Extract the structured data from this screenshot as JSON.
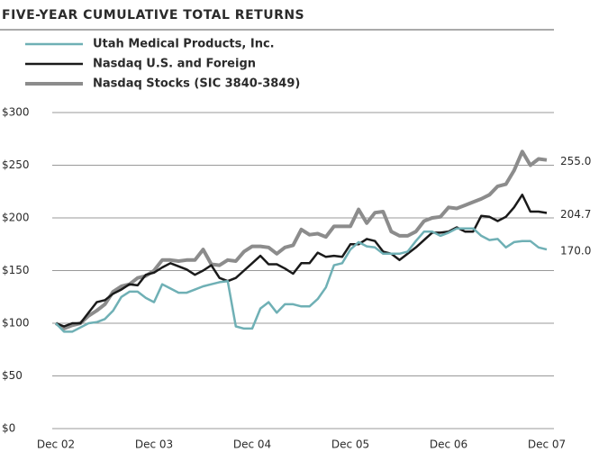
{
  "chart_data": {
    "type": "line",
    "title": "FIVE-YEAR CUMULATIVE TOTAL RETURNS",
    "categories": [
      "Dec 02",
      null,
      null,
      null,
      null,
      null,
      null,
      null,
      null,
      null,
      null,
      null,
      "Dec 03",
      null,
      null,
      null,
      null,
      null,
      null,
      null,
      null,
      null,
      null,
      null,
      "Dec 04",
      null,
      null,
      null,
      null,
      null,
      null,
      null,
      null,
      null,
      null,
      null,
      "Dec 05",
      null,
      null,
      null,
      null,
      null,
      null,
      null,
      null,
      null,
      null,
      null,
      "Dec 06",
      null,
      null,
      null,
      null,
      null,
      null,
      null,
      null,
      null,
      null,
      null,
      "Dec 07"
    ],
    "series": [
      {
        "name": "Utah Medical Products, Inc.",
        "color": "#6fb0b5",
        "width": 2.5,
        "values": [
          100,
          92,
          92,
          96,
          100,
          101,
          104,
          112,
          125,
          130,
          130,
          124,
          120,
          137,
          133,
          129,
          129,
          132,
          135,
          137,
          139,
          140,
          97,
          95,
          95,
          114,
          120,
          110,
          118,
          118,
          116,
          116,
          123,
          134,
          155,
          157,
          170,
          177,
          173,
          172,
          166,
          166,
          166,
          168,
          178,
          187,
          187,
          183,
          186,
          190,
          190,
          190,
          183,
          179,
          180,
          172,
          177,
          178,
          178,
          172,
          170.0
        ],
        "value_labels": [
          null,
          null,
          null,
          null,
          null,
          null,
          null,
          null,
          null,
          null,
          null,
          null,
          null,
          null,
          null,
          null,
          null,
          null,
          null,
          null,
          null,
          null,
          null,
          null,
          null,
          null,
          null,
          null,
          null,
          null,
          null,
          null,
          null,
          null,
          null,
          null,
          null,
          null,
          null,
          null,
          null,
          null,
          null,
          null,
          null,
          null,
          null,
          null,
          null,
          null,
          null,
          null,
          null,
          null,
          null,
          null,
          null,
          null,
          null,
          null,
          "170.0"
        ]
      },
      {
        "name": "Nasdaq U.S. and Foreign",
        "color": "#1a1a1a",
        "width": 2.5,
        "values": [
          100,
          97,
          100,
          100,
          110,
          120,
          122,
          128,
          132,
          137,
          136,
          146,
          148,
          153,
          157,
          154,
          151,
          146,
          150,
          155,
          143,
          140,
          143,
          150,
          157,
          164,
          156,
          156,
          152,
          147,
          157,
          157,
          167,
          163,
          164,
          163,
          175,
          175,
          180,
          178,
          168,
          166,
          160,
          166,
          172,
          179,
          186,
          186,
          187,
          191,
          187,
          187,
          202,
          201,
          197,
          201,
          210,
          222,
          206,
          206,
          204.7
        ],
        "value_labels": [
          null,
          null,
          null,
          null,
          null,
          null,
          null,
          null,
          null,
          null,
          null,
          null,
          null,
          null,
          null,
          null,
          null,
          null,
          null,
          null,
          null,
          null,
          null,
          null,
          null,
          null,
          null,
          null,
          null,
          null,
          null,
          null,
          null,
          null,
          null,
          null,
          null,
          null,
          null,
          null,
          null,
          null,
          null,
          null,
          null,
          null,
          null,
          null,
          null,
          null,
          null,
          null,
          null,
          null,
          null,
          null,
          null,
          null,
          null,
          null,
          "204.7"
        ]
      },
      {
        "name": "Nasdaq Stocks (SIC 3840-3849)",
        "color": "#8c8c8c",
        "width": 4,
        "values": [
          100,
          95,
          98,
          100,
          107,
          112,
          118,
          130,
          135,
          137,
          143,
          145,
          150,
          160,
          160,
          159,
          160,
          160,
          170,
          156,
          155,
          160,
          159,
          168,
          173,
          173,
          172,
          166,
          172,
          174,
          189,
          184,
          185,
          182,
          192,
          192,
          192,
          208,
          195,
          205,
          206,
          187,
          183,
          183,
          187,
          197,
          200,
          201,
          210,
          209,
          212,
          215,
          218,
          222,
          230,
          232,
          245,
          263,
          250,
          256,
          255.0
        ],
        "value_labels": [
          null,
          null,
          null,
          null,
          null,
          null,
          null,
          null,
          null,
          null,
          null,
          null,
          null,
          null,
          null,
          null,
          null,
          null,
          null,
          null,
          null,
          null,
          null,
          null,
          null,
          null,
          null,
          null,
          null,
          null,
          null,
          null,
          null,
          null,
          null,
          null,
          null,
          null,
          null,
          null,
          null,
          null,
          null,
          null,
          null,
          null,
          null,
          null,
          null,
          null,
          null,
          null,
          null,
          null,
          null,
          null,
          null,
          null,
          null,
          null,
          "255.0"
        ]
      }
    ],
    "ylim": [
      0,
      300
    ],
    "yticks": [
      {
        "value": 0,
        "label": "$0"
      },
      {
        "value": 50,
        "label": "$50"
      },
      {
        "value": 100,
        "label": "$100"
      },
      {
        "value": 150,
        "label": "$150"
      },
      {
        "value": 200,
        "label": "$200"
      },
      {
        "value": 250,
        "label": "$250"
      },
      {
        "value": 300,
        "label": "$300"
      }
    ],
    "grid": true
  }
}
